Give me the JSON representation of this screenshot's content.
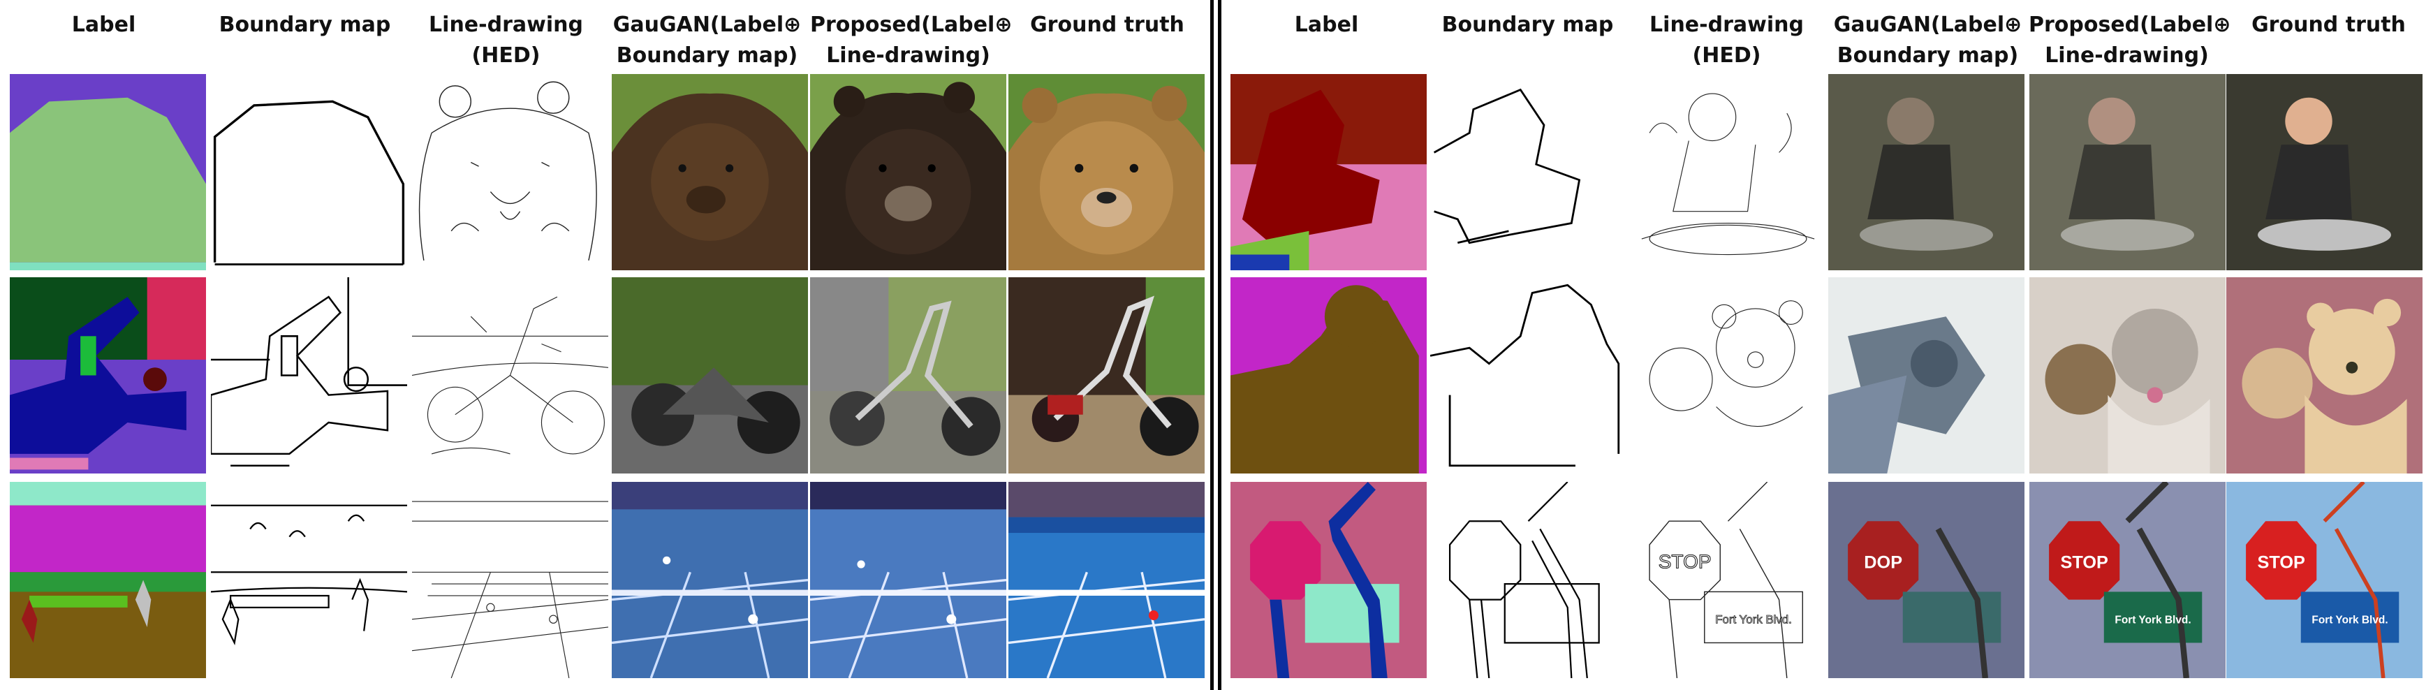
{
  "figure": {
    "columns": [
      "Label",
      "Boundary map",
      "Line-drawing\n(HED)",
      "GauGAN(Label⊕\nBoundary map)",
      "Proposed(Label⊕\nLine-drawing)",
      "Ground truth"
    ],
    "examples": {
      "left": [
        "bear",
        "motorcycle",
        "tennis"
      ],
      "right": [
        "child",
        "teddy-bears",
        "stop-sign"
      ]
    },
    "in_image_text": {
      "stop": "STOP",
      "stop_gaugan": "DOP",
      "street": "Fort York Blvd."
    },
    "colors": {
      "divider": "#000000",
      "label_green": "#8ac47a",
      "label_purple": "#6a3fc8",
      "label_maroon": "#8a0c0c",
      "label_pink": "#e07ab6",
      "label_magenta": "#c226c8",
      "label_olive": "#6e5010",
      "label_navy": "#0d2ea0",
      "label_mint": "#8ee8c9"
    }
  }
}
